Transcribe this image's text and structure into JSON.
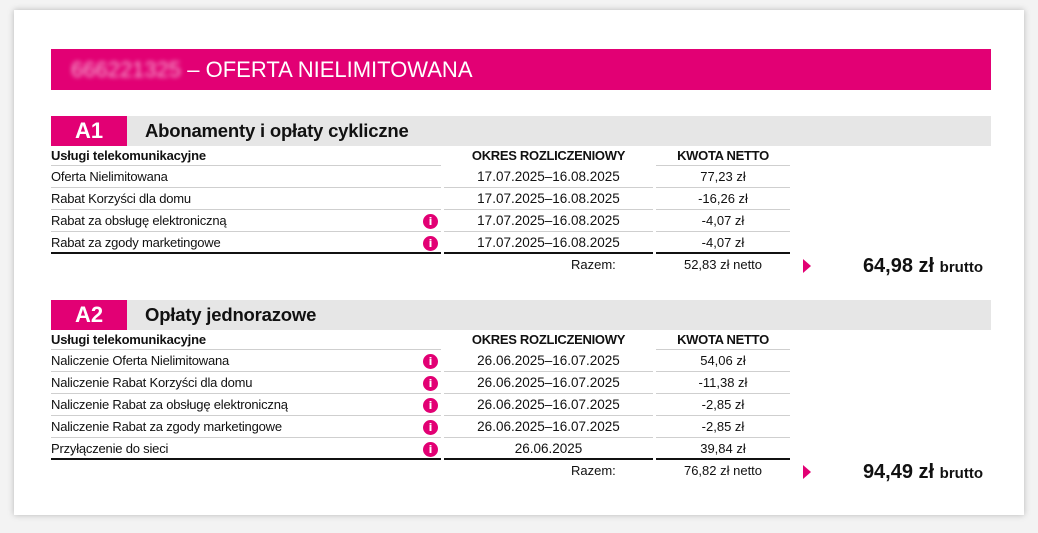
{
  "banner": {
    "number": "666221325",
    "title": "– OFERTA NIELIMITOWANA"
  },
  "sections": [
    {
      "badge": "A1",
      "title": "Abonamenty i opłaty cykliczne",
      "col_service": "Usługi telekomunikacyjne",
      "col_period": "OKRES ROZLICZENIOWY",
      "col_amount": "KWOTA NETTO",
      "rows": [
        {
          "name": "Oferta Nielimitowana",
          "period": "17.07.2025–16.08.2025",
          "amount": "77,23 zł"
        },
        {
          "name": "Rabat Korzyści dla domu",
          "period": "17.07.2025–16.08.2025",
          "amount": "-16,26 zł"
        },
        {
          "name": "Rabat za obsługę elektroniczną",
          "period": "17.07.2025–16.08.2025",
          "amount": "-4,07 zł",
          "info": "i"
        },
        {
          "name": "Rabat za zgody marketingowe",
          "period": "17.07.2025–16.08.2025",
          "amount": "-4,07 zł",
          "info": "i"
        }
      ],
      "sum_label": "Razem:",
      "sum_net": "52,83 zł netto",
      "sum_gross": "64,98 zł",
      "sum_gross_suffix": "brutto"
    },
    {
      "badge": "A2",
      "title": "Opłaty jednorazowe",
      "col_service": "Usługi telekomunikacyjne",
      "col_period": "OKRES ROZLICZENIOWY",
      "col_amount": "KWOTA NETTO",
      "rows": [
        {
          "name": "Naliczenie Oferta Nielimitowana",
          "period": "26.06.2025–16.07.2025",
          "amount": "54,06 zł",
          "info": "i"
        },
        {
          "name": "Naliczenie Rabat Korzyści dla domu",
          "period": "26.06.2025–16.07.2025",
          "amount": "-11,38 zł",
          "info": "i"
        },
        {
          "name": "Naliczenie Rabat za obsługę elektroniczną",
          "period": "26.06.2025–16.07.2025",
          "amount": "-2,85 zł",
          "info": "i"
        },
        {
          "name": "Naliczenie Rabat za zgody marketingowe",
          "period": "26.06.2025–16.07.2025",
          "amount": "-2,85 zł",
          "info": "i"
        },
        {
          "name": "Przyłączenie do sieci",
          "period": "26.06.2025",
          "amount": "39,84 zł",
          "info": "i"
        }
      ],
      "sum_label": "Razem:",
      "sum_net": "76,82 zł netto",
      "sum_gross": "94,49 zł",
      "sum_gross_suffix": "brutto"
    }
  ],
  "colors": {
    "accent": "#e20074",
    "section_bg": "#e6e6e6"
  }
}
